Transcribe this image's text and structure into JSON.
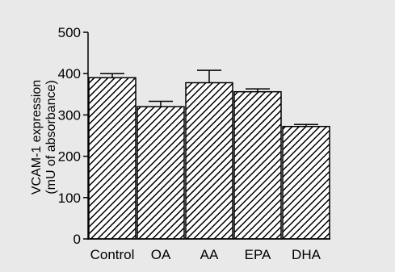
{
  "chart_data": {
    "type": "bar",
    "categories": [
      "Control",
      "OA",
      "AA",
      "EPA",
      "DHA"
    ],
    "series": [
      {
        "values": [
          390,
          320,
          378,
          356,
          272
        ],
        "error": [
          10,
          13,
          30,
          7,
          5
        ]
      }
    ],
    "ylabel_line1": "VCAM-1 expression",
    "ylabel_line2": "(mU of absorbance)",
    "xlabel": "",
    "title": "",
    "ylim": [
      0,
      500
    ],
    "yticks": [
      0,
      100,
      200,
      300,
      400,
      500
    ],
    "grid": false,
    "bar_fill": "diagonal-hatch",
    "bar_color": "#000000",
    "background": "#e9e9e9"
  }
}
